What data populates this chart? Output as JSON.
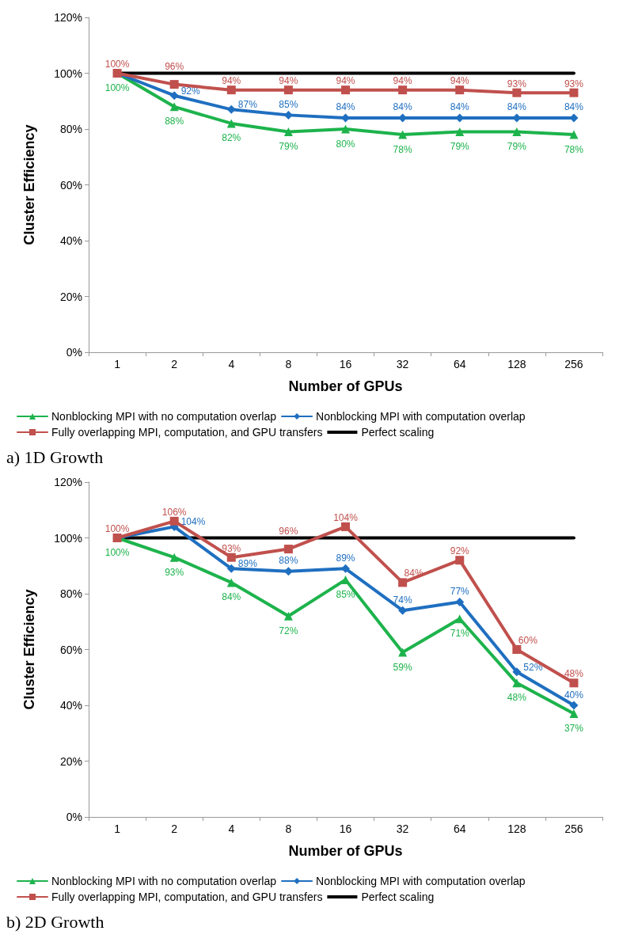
{
  "chart_data": [
    {
      "type": "line",
      "xlabel": "Number of GPUs",
      "ylabel": "Cluster Efficiency",
      "categories": [
        "1",
        "2",
        "4",
        "8",
        "16",
        "32",
        "64",
        "128",
        "256"
      ],
      "ylim": [
        0,
        120
      ],
      "yticks": [
        {
          "value": 0,
          "label": "0%"
        },
        {
          "value": 20,
          "label": "20%"
        },
        {
          "value": 40,
          "label": "40%"
        },
        {
          "value": 60,
          "label": "60%"
        },
        {
          "value": 80,
          "label": "80%"
        },
        {
          "value": 100,
          "label": "100%"
        },
        {
          "value": 120,
          "label": "120%"
        }
      ],
      "grid": false,
      "legend": "bottom",
      "annotations": [
        "a) 1D Growth"
      ],
      "series": [
        {
          "name": "Nonblocking MPI with no computation overlap",
          "color": "#1db34c",
          "marker": "triangle",
          "values": [
            100,
            88,
            82,
            79,
            80,
            78,
            79,
            79,
            78
          ],
          "value_labels": [
            "100%",
            "88%",
            "82%",
            "79%",
            "80%",
            "78%",
            "79%",
            "79%",
            "78%"
          ]
        },
        {
          "name": "Nonblocking MPI with computation overlap",
          "color": "#1f6fc0",
          "marker": "diamond",
          "values": [
            100,
            92,
            87,
            85,
            84,
            84,
            84,
            84,
            84
          ],
          "value_labels": [
            null,
            "92%",
            "87%",
            "85%",
            "84%",
            "84%",
            "84%",
            "84%",
            "84%"
          ]
        },
        {
          "name": "Fully overlapping MPI, computation, and GPU transfers",
          "color": "#c0504d",
          "marker": "square",
          "values": [
            100,
            96,
            94,
            94,
            94,
            94,
            94,
            93,
            93
          ],
          "value_labels": [
            "100%",
            "96%",
            "94%",
            "94%",
            "94%",
            "94%",
            "94%",
            "93%",
            "93%"
          ]
        },
        {
          "name": "Perfect scaling",
          "color": "#000000",
          "marker": "none",
          "values": [
            100,
            100,
            100,
            100,
            100,
            100,
            100,
            100,
            100
          ]
        }
      ]
    },
    {
      "type": "line",
      "xlabel": "Number of GPUs",
      "ylabel": "Cluster Efficiency",
      "categories": [
        "1",
        "2",
        "4",
        "8",
        "16",
        "32",
        "64",
        "128",
        "256"
      ],
      "ylim": [
        0,
        120
      ],
      "yticks": [
        {
          "value": 0,
          "label": "0%"
        },
        {
          "value": 20,
          "label": "20%"
        },
        {
          "value": 40,
          "label": "40%"
        },
        {
          "value": 60,
          "label": "60%"
        },
        {
          "value": 80,
          "label": "80%"
        },
        {
          "value": 100,
          "label": "100%"
        },
        {
          "value": 120,
          "label": "120%"
        }
      ],
      "grid": false,
      "legend": "bottom",
      "annotations": [
        "b) 2D Growth"
      ],
      "series": [
        {
          "name": "Nonblocking MPI with no computation overlap",
          "color": "#1db34c",
          "marker": "triangle",
          "values": [
            100,
            93,
            84,
            72,
            85,
            59,
            71,
            48,
            37
          ],
          "value_labels": [
            "100%",
            "93%",
            "84%",
            "72%",
            "85%",
            "59%",
            "71%",
            "48%",
            "37%"
          ]
        },
        {
          "name": "Nonblocking MPI with computation overlap",
          "color": "#1f6fc0",
          "marker": "diamond",
          "values": [
            100,
            104,
            89,
            88,
            89,
            74,
            77,
            52,
            40
          ],
          "value_labels": [
            null,
            "104%",
            "89%",
            "88%",
            "89%",
            "74%",
            "77%",
            "52%",
            "40%"
          ]
        },
        {
          "name": "Fully overlapping MPI, computation, and GPU transfers",
          "color": "#c0504d",
          "marker": "square",
          "values": [
            100,
            106,
            93,
            96,
            104,
            84,
            92,
            60,
            48
          ],
          "value_labels": [
            "100%",
            "106%",
            "93%",
            "96%",
            "104%",
            "84%",
            "92%",
            "60%",
            "48%"
          ]
        },
        {
          "name": "Perfect scaling",
          "color": "#000000",
          "marker": "none",
          "values": [
            100,
            100,
            100,
            100,
            100,
            100,
            100,
            100,
            100
          ]
        }
      ]
    }
  ]
}
